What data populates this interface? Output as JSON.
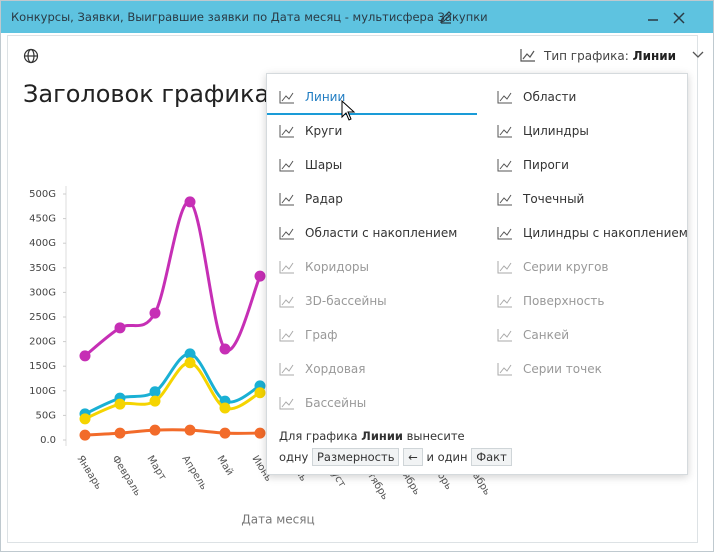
{
  "window": {
    "title": "Конкурсы, Заявки, Выигравшие заявки по Дата месяц - мультисфера Закупки"
  },
  "chart_type_selector": {
    "label": "Тип графика:",
    "value": "Линии"
  },
  "menu": {
    "left": [
      {
        "label": "Линии",
        "enabled": true,
        "selected": true
      },
      {
        "label": "Круги",
        "enabled": true,
        "selected": false
      },
      {
        "label": "Шары",
        "enabled": true,
        "selected": false
      },
      {
        "label": "Радар",
        "enabled": true,
        "selected": false
      },
      {
        "label": "Области с накоплением",
        "enabled": true,
        "selected": false
      },
      {
        "label": "Коридоры",
        "enabled": false,
        "selected": false
      },
      {
        "label": "3D-бассейны",
        "enabled": false,
        "selected": false
      },
      {
        "label": "Граф",
        "enabled": false,
        "selected": false
      },
      {
        "label": "Хордовая",
        "enabled": false,
        "selected": false
      },
      {
        "label": "Бассейны",
        "enabled": false,
        "selected": false
      }
    ],
    "right": [
      {
        "label": "Области",
        "enabled": true,
        "selected": false
      },
      {
        "label": "Цилиндры",
        "enabled": true,
        "selected": false
      },
      {
        "label": "Пироги",
        "enabled": true,
        "selected": false
      },
      {
        "label": "Точечный",
        "enabled": true,
        "selected": false
      },
      {
        "label": "Цилиндры с накоплением",
        "enabled": true,
        "selected": false
      },
      {
        "label": "Серии кругов",
        "enabled": false,
        "selected": false
      },
      {
        "label": "Поверхность",
        "enabled": false,
        "selected": false
      },
      {
        "label": "Санкей",
        "enabled": false,
        "selected": false
      },
      {
        "label": "Серии точек",
        "enabled": false,
        "selected": false
      }
    ]
  },
  "hint": {
    "prefix": "Для графика",
    "chart": "Линии",
    "suffix": "вынесите",
    "one_f": "одну",
    "dimension": "Размерность",
    "arrow": "←",
    "and_one": "и один",
    "fact": "Факт"
  },
  "chart": {
    "type": "line",
    "title": "Заголовок графика",
    "x_label": "Дата месяц",
    "categories": [
      "Январь",
      "Февраль",
      "Март",
      "Апрель",
      "Май",
      "Июнь",
      "Июль",
      "Август",
      "Сентябрь",
      "Октябрь",
      "Ноябрь",
      "Декабрь"
    ],
    "ylim": [
      0,
      500
    ],
    "yticks": [
      {
        "value": 0,
        "label": "0.0"
      },
      {
        "value": 50,
        "label": "50G"
      },
      {
        "value": 100,
        "label": "100G"
      },
      {
        "value": 150,
        "label": "150G"
      },
      {
        "value": 200,
        "label": "200G"
      },
      {
        "value": 250,
        "label": "250G"
      },
      {
        "value": 300,
        "label": "300G"
      },
      {
        "value": 350,
        "label": "350G"
      },
      {
        "value": 400,
        "label": "400G"
      },
      {
        "value": 450,
        "label": "450G"
      },
      {
        "value": 500,
        "label": "500G"
      }
    ],
    "series": [
      {
        "color": "#c62fb5",
        "values": [
          171,
          228,
          258,
          484,
          185,
          333,
          null,
          null,
          null,
          null,
          null,
          null
        ]
      },
      {
        "color": "#1ab0d4",
        "values": [
          53,
          85,
          98,
          175,
          79,
          110,
          null,
          null,
          null,
          null,
          null,
          null
        ]
      },
      {
        "color": "#f5d400",
        "values": [
          43,
          73,
          79,
          157,
          65,
          96,
          null,
          null,
          null,
          null,
          null,
          null
        ]
      },
      {
        "color": "#f26b2a",
        "values": [
          10,
          14,
          20,
          20,
          14,
          14,
          null,
          null,
          null,
          null,
          null,
          null
        ]
      }
    ]
  }
}
